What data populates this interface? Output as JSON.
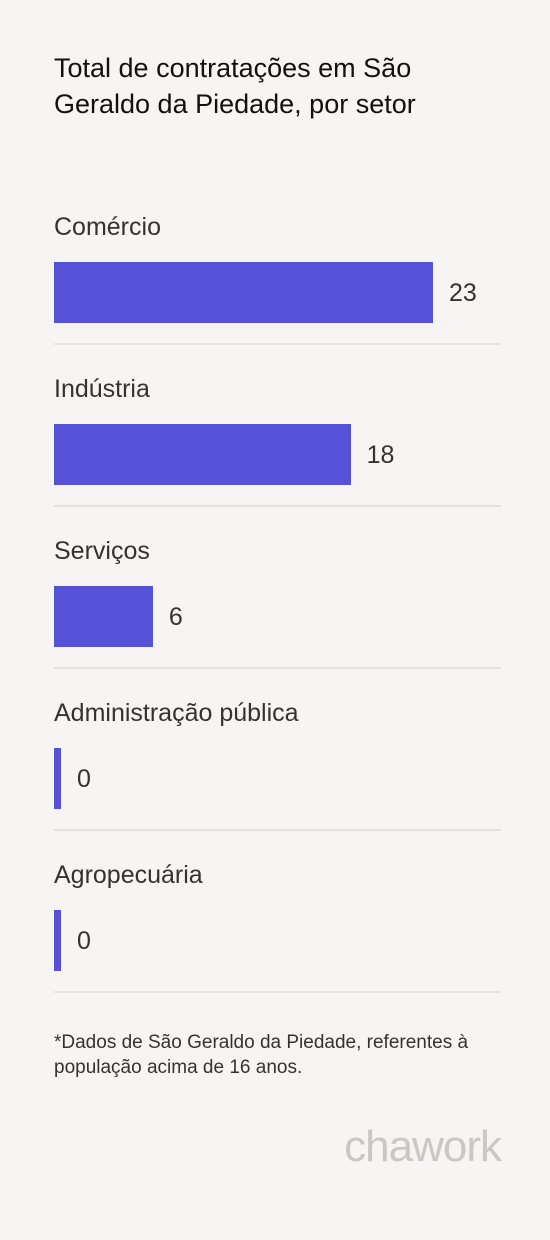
{
  "title": "Total de contratações em São Geraldo da Piedade, por setor",
  "chart_data": {
    "type": "bar",
    "orientation": "horizontal",
    "title": "Total de contratações em São Geraldo da Piedade, por setor",
    "categories": [
      "Comércio",
      "Indústria",
      "Serviços",
      "Administração pública",
      "Agropecuária"
    ],
    "values": [
      23,
      18,
      6,
      0,
      0
    ],
    "data_labels": [
      "23",
      "18",
      "6",
      "0",
      "0"
    ],
    "xlim": [
      0,
      27
    ],
    "bar_color": "#5652d8",
    "grid": false,
    "legend": "none"
  },
  "footnote": "*Dados de São Geraldo da Piedade, referentes à população acima de 16 anos.",
  "logo_text": "chawork"
}
